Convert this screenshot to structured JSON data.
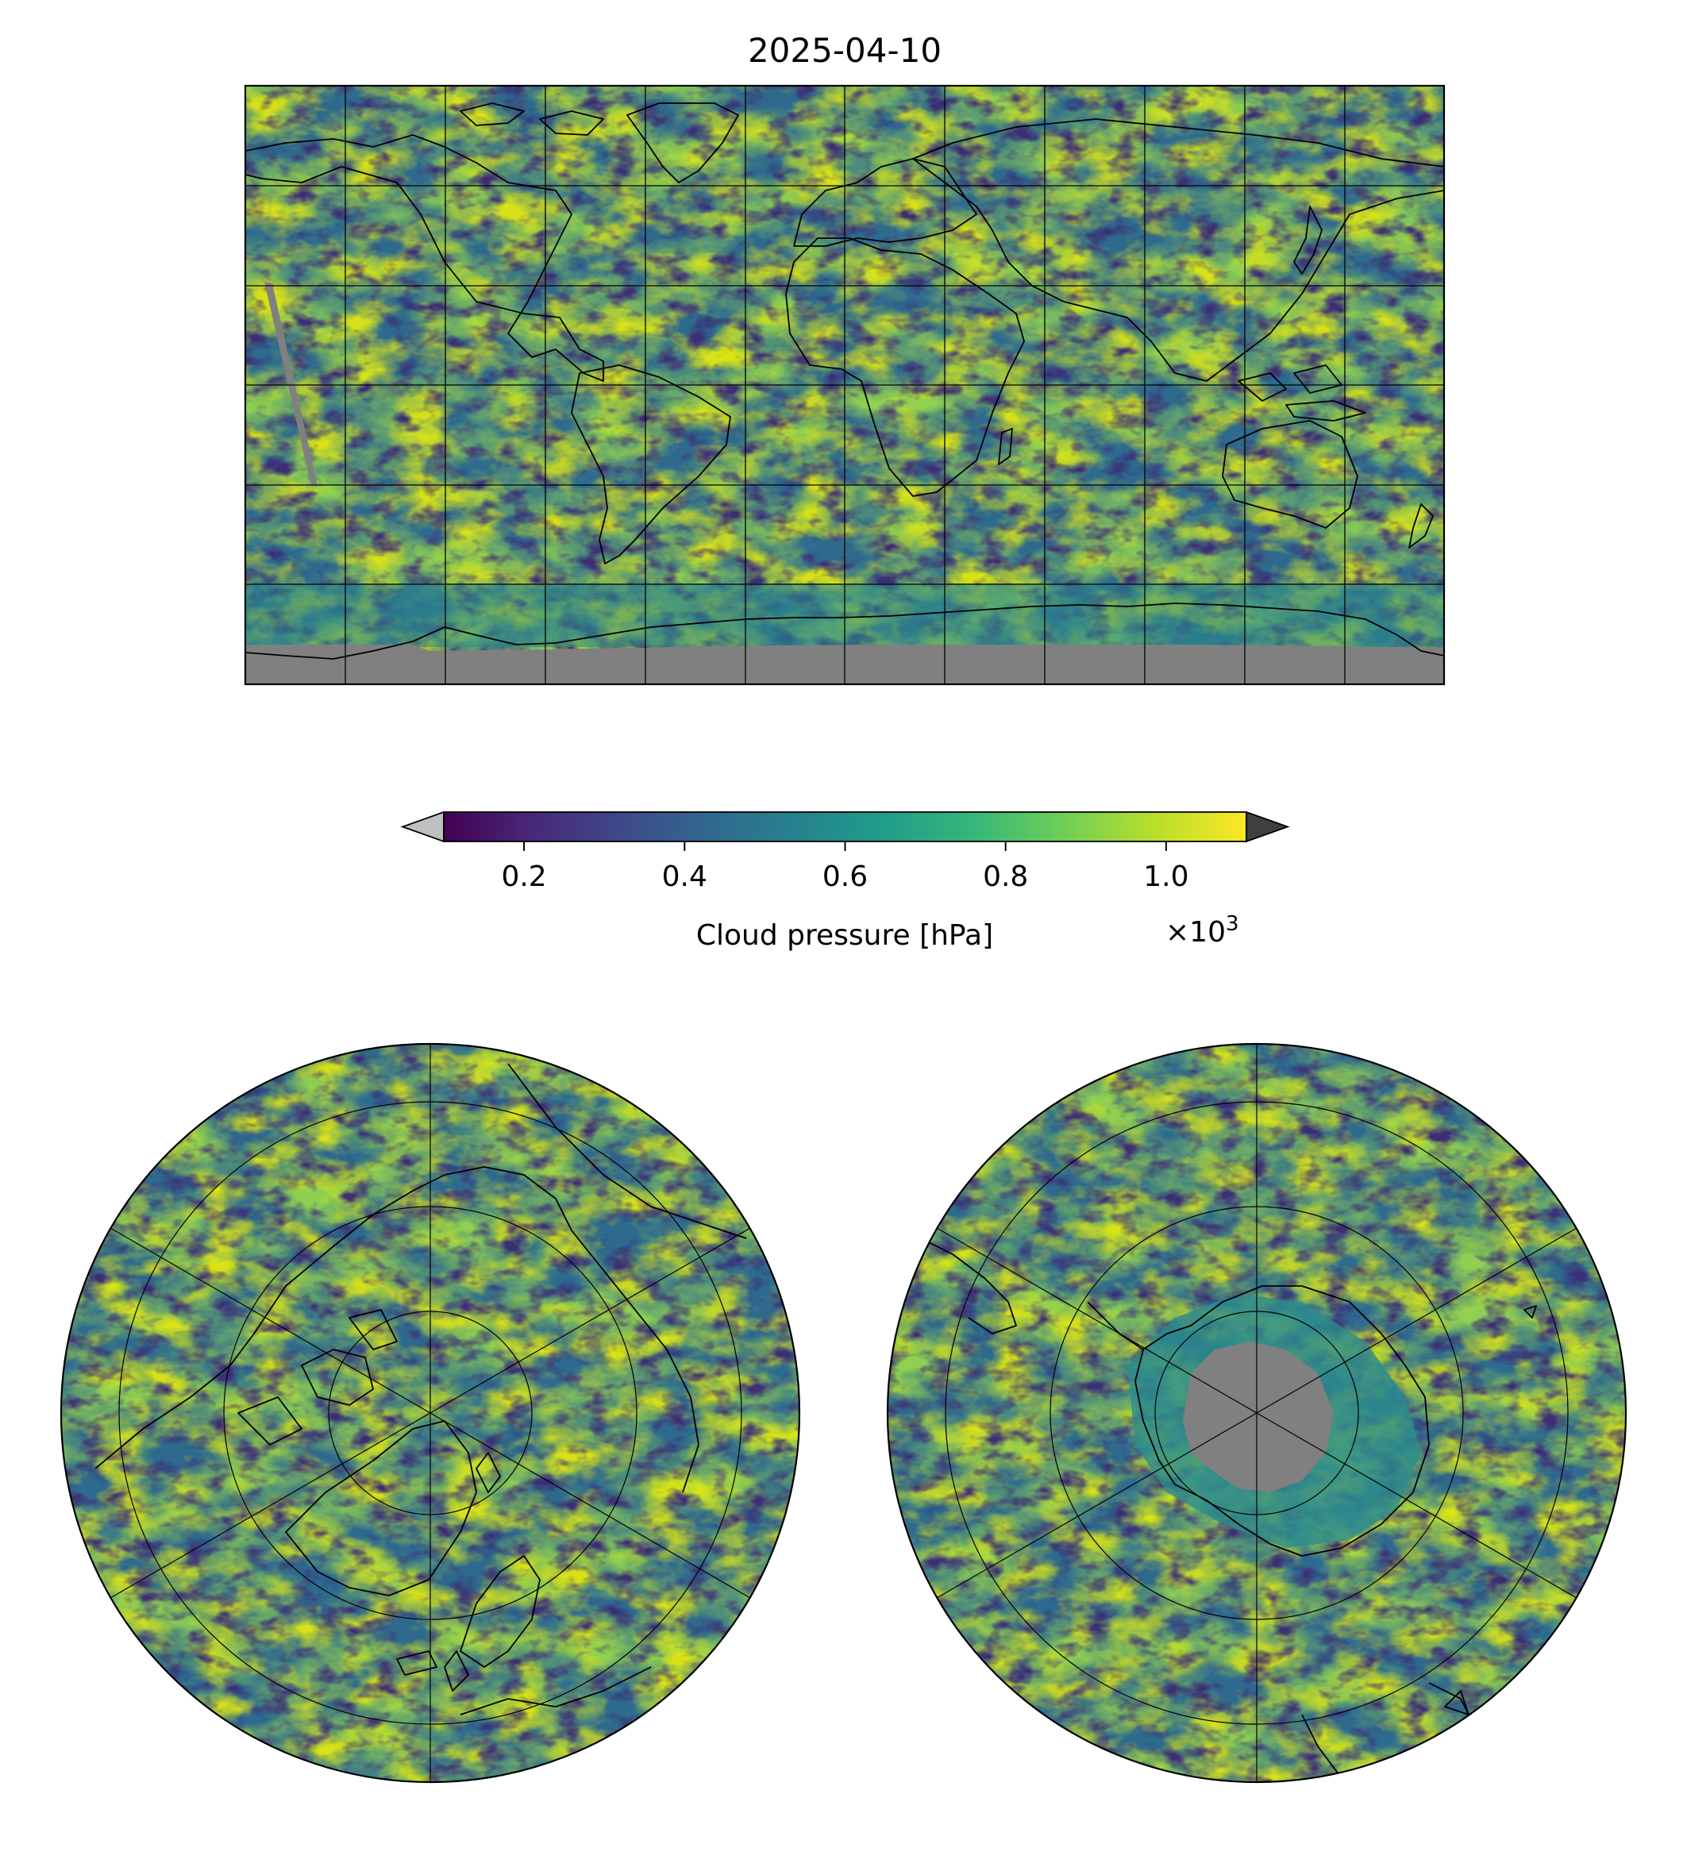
{
  "title": "2025-04-10",
  "colors": {
    "viridis": [
      "#440154",
      "#482878",
      "#3e4989",
      "#31688e",
      "#26828e",
      "#1f9e89",
      "#35b779",
      "#6ece58",
      "#b5de2b",
      "#fde725"
    ],
    "under": "#c0c0c0",
    "over": "#404040",
    "missing": "#808080",
    "coast": "#000000",
    "grid": "#000000"
  },
  "chart_data": [
    {
      "type": "heatmap",
      "panel": "global map (Plate Carrée)",
      "title": "2025-04-10",
      "variable": "Cloud pressure",
      "units": "hPa",
      "lon_range": [
        -180,
        180
      ],
      "lat_range": [
        -90,
        90
      ],
      "gridlines_lon": [
        -150,
        -120,
        -90,
        -60,
        -30,
        0,
        30,
        60,
        90,
        120,
        150
      ],
      "gridlines_lat": [
        -60,
        -30,
        0,
        30,
        60
      ],
      "grid": true,
      "missing_data_regions": [
        "Antarctic interior south of about 78°S",
        "narrow swath near 170°W, 5°S to 35°N"
      ]
    },
    {
      "type": "heatmap",
      "panel": "northern polar stereographic",
      "grid": true,
      "meridian_lines": 6,
      "latitude_circles": 4
    },
    {
      "type": "heatmap",
      "panel": "southern polar stereographic",
      "grid": true,
      "meridian_lines": 6,
      "latitude_circles": 4,
      "missing_data_regions": [
        "Antarctic interior around the pole"
      ]
    }
  ],
  "colorbar": {
    "label": "Cloud pressure [hPa]",
    "range": [
      0.1,
      1.1
    ],
    "ticks": [
      0.2,
      0.4,
      0.6,
      0.8,
      1.0
    ],
    "tick_labels": [
      "0.2",
      "0.4",
      "0.6",
      "0.8",
      "1.0"
    ],
    "multiplier_base": "×10",
    "multiplier_exp": "3",
    "extend": "both"
  }
}
